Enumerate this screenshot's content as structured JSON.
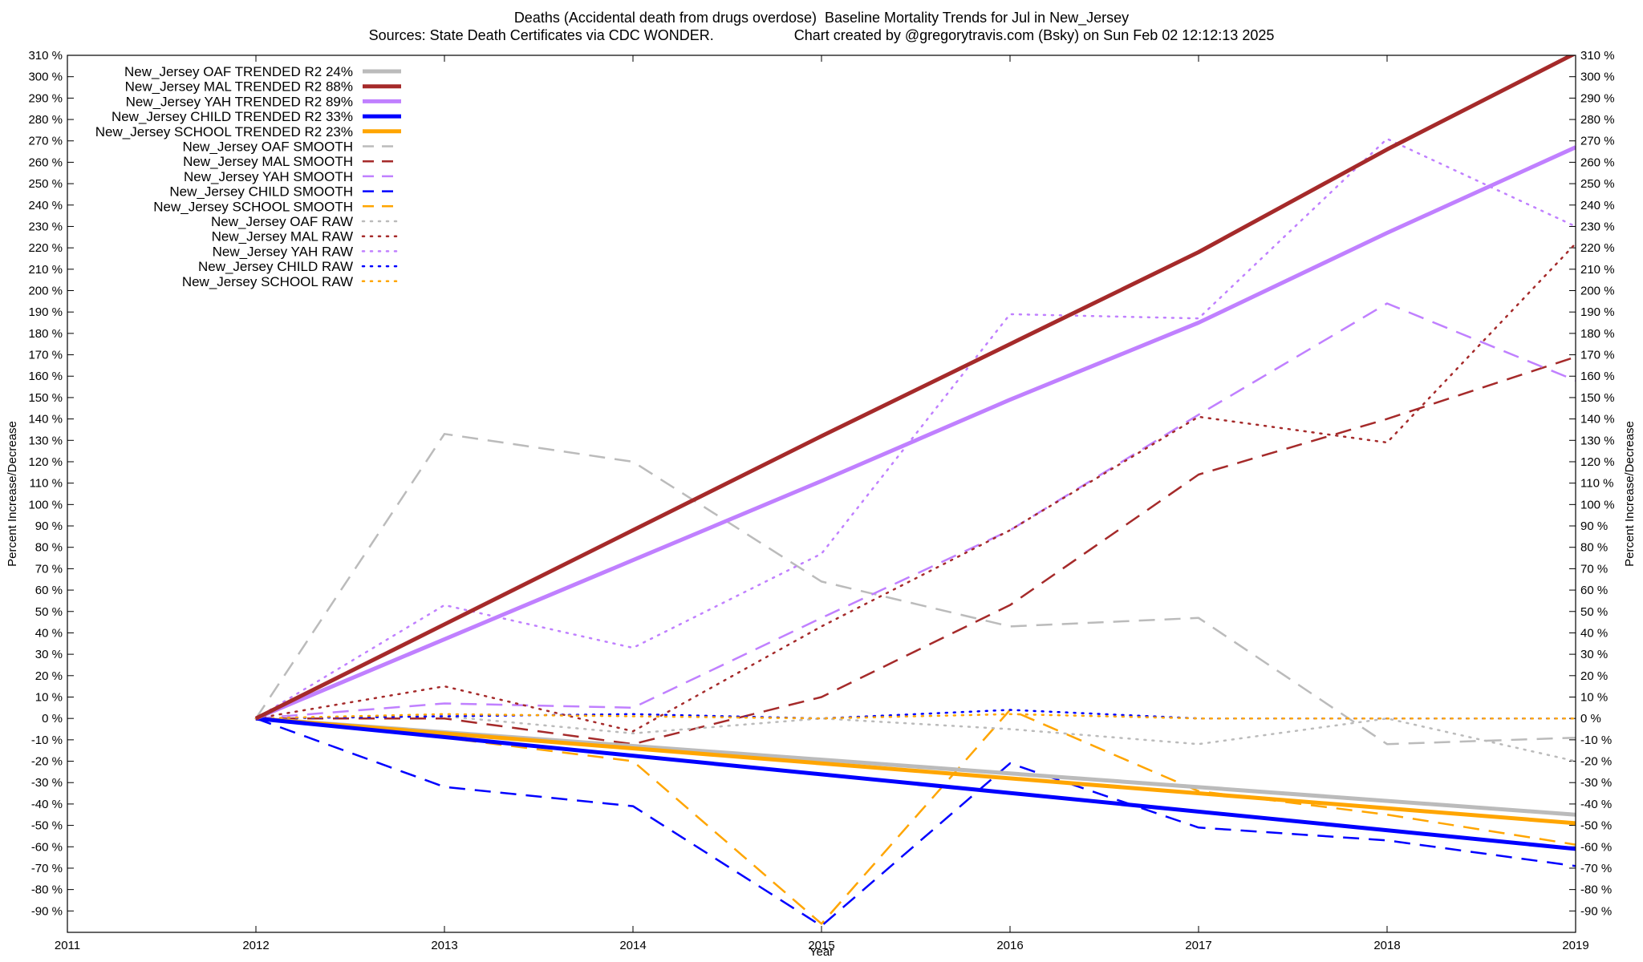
{
  "chart_data": {
    "type": "line",
    "title": "Deaths (Accidental death from drugs overdose)  Baseline Mortality Trends for Jul in New_Jersey",
    "subtitle_left": "Sources: State Death Certificates via CDC WONDER.",
    "subtitle_right": "Chart created by @gregorytravis.com (Bsky) on Sun Feb 02 12:12:13 2025",
    "xlabel": "Year",
    "ylabel": "Percent Increase/Decrease",
    "y2label": "Percent Increase/Decrease",
    "xlim": [
      2011,
      2019
    ],
    "ylim": [
      -100,
      310
    ],
    "x_ticks": [
      "2011",
      "2012",
      "2013",
      "2014",
      "2015",
      "2016",
      "2017",
      "2018",
      "2019"
    ],
    "y_ticks_left": [
      "310 %",
      "300 %",
      "290 %",
      "280 %",
      "270 %",
      "260 %",
      "250 %",
      "240 %",
      "230 %",
      "220 %",
      "210 %",
      "200 %",
      "190 %",
      "180 %",
      "170 %",
      "160 %",
      "150 %",
      "140 %",
      "130 %",
      "120 %",
      "110 %",
      "100 %",
      "90 %",
      "80 %",
      "70 %",
      "60 %",
      "50 %",
      "40 %",
      "30 %",
      "20 %",
      "10 %",
      "0 %",
      "-10 %",
      "-20 %",
      "-30 %",
      "-40 %",
      "-50 %",
      "-60 %",
      "-70 %",
      "-80 %",
      "-90 %"
    ],
    "y_ticks_right": [
      "310 %",
      "300 %",
      "290 %",
      "280 %",
      "270 %",
      "260 %",
      "250 %",
      "240 %",
      "230 %",
      "220 %",
      "210 %",
      "200 %",
      "190 %",
      "180 %",
      "170 %",
      "160 %",
      "150 %",
      "140 %",
      "130 %",
      "120 %",
      "110 %",
      "100 %",
      "90 %",
      "80 %",
      "70 %",
      "60 %",
      "50 %",
      "40 %",
      "30 %",
      "20 %",
      "10 %",
      "0 %",
      "-10 %",
      "-20 %",
      "-30 %",
      "-40 %",
      "-50 %",
      "-60 %",
      "-70 %",
      "-80 %",
      "-90 %"
    ],
    "legend_position": "top-left",
    "series": [
      {
        "name": "New_Jersey OAF TRENDED R2  24%",
        "color": "#bbbbbb",
        "style": "solid",
        "width": 5,
        "x": [
          2012,
          2019
        ],
        "y": [
          0,
          -45
        ]
      },
      {
        "name": "New_Jersey MAL TRENDED R2  88%",
        "color": "#a52a2a",
        "style": "solid",
        "width": 5,
        "x": [
          2012,
          2013,
          2014,
          2015,
          2016,
          2017,
          2018,
          2019
        ],
        "y": [
          0,
          44,
          88,
          132,
          175,
          218,
          266,
          311
        ]
      },
      {
        "name": "New_Jersey YAH TRENDED R2  89%",
        "color": "#c080ff",
        "style": "solid",
        "width": 5,
        "x": [
          2012,
          2013,
          2014,
          2015,
          2016,
          2017,
          2018,
          2019
        ],
        "y": [
          0,
          37,
          74,
          111,
          149,
          185,
          227,
          267
        ]
      },
      {
        "name": "New_Jersey CHILD TRENDED R2  33%",
        "color": "#0000ff",
        "style": "solid",
        "width": 5,
        "x": [
          2012,
          2019
        ],
        "y": [
          0,
          -61
        ]
      },
      {
        "name": "New_Jersey SCHOOL TRENDED R2  23%",
        "color": "#ffa500",
        "style": "solid",
        "width": 5,
        "x": [
          2012,
          2019
        ],
        "y": [
          0,
          -49
        ]
      },
      {
        "name": "New_Jersey OAF SMOOTH",
        "color": "#bbbbbb",
        "style": "dashed",
        "width": 2.5,
        "x": [
          2012,
          2013,
          2014,
          2015,
          2016,
          2017,
          2018,
          2019
        ],
        "y": [
          0,
          133,
          120,
          64,
          43,
          47,
          -12,
          -9
        ]
      },
      {
        "name": "New_Jersey MAL SMOOTH",
        "color": "#a52a2a",
        "style": "dashed",
        "width": 2.5,
        "x": [
          2012,
          2013,
          2014,
          2015,
          2016,
          2017,
          2018,
          2019
        ],
        "y": [
          0,
          0,
          -12,
          10,
          53,
          114,
          140,
          169
        ]
      },
      {
        "name": "New_Jersey YAH SMOOTH",
        "color": "#c080ff",
        "style": "dashed",
        "width": 2.5,
        "x": [
          2012,
          2013,
          2014,
          2015,
          2016,
          2017,
          2018,
          2019
        ],
        "y": [
          0,
          7,
          5,
          47,
          88,
          142,
          194,
          158
        ]
      },
      {
        "name": "New_Jersey CHILD SMOOTH",
        "color": "#0000ff",
        "style": "dashed",
        "width": 2.5,
        "x": [
          2012,
          2013,
          2014,
          2015,
          2016,
          2017,
          2018,
          2019
        ],
        "y": [
          0,
          -32,
          -41,
          -97,
          -21,
          -51,
          -57,
          -69
        ]
      },
      {
        "name": "New_Jersey SCHOOL SMOOTH",
        "color": "#ffa500",
        "style": "dashed",
        "width": 2.5,
        "x": [
          2012,
          2013,
          2014,
          2015,
          2016,
          2017,
          2018,
          2019
        ],
        "y": [
          0,
          -9,
          -20,
          -96,
          4,
          -34,
          -45,
          -59
        ]
      },
      {
        "name": "New_Jersey OAF RAW",
        "color": "#bbbbbb",
        "style": "dotted",
        "width": 2.5,
        "x": [
          2012,
          2013,
          2014,
          2015,
          2016,
          2017,
          2018,
          2019
        ],
        "y": [
          0,
          1,
          -7,
          0,
          -5,
          -12,
          0,
          -20
        ]
      },
      {
        "name": "New_Jersey MAL RAW",
        "color": "#a52a2a",
        "style": "dotted",
        "width": 2.5,
        "x": [
          2012,
          2013,
          2014,
          2015,
          2016,
          2017,
          2018,
          2019
        ],
        "y": [
          0,
          15,
          -6,
          43,
          88,
          141,
          129,
          222
        ]
      },
      {
        "name": "New_Jersey YAH RAW",
        "color": "#c080ff",
        "style": "dotted",
        "width": 2.5,
        "x": [
          2012,
          2013,
          2014,
          2015,
          2016,
          2017,
          2018,
          2019
        ],
        "y": [
          0,
          53,
          33,
          77,
          189,
          187,
          271,
          230
        ]
      },
      {
        "name": "New_Jersey CHILD RAW",
        "color": "#0000ff",
        "style": "dotted",
        "width": 2.5,
        "x": [
          2012,
          2013,
          2014,
          2015,
          2016,
          2017,
          2018,
          2019
        ],
        "y": [
          0,
          1,
          2,
          0,
          4,
          0,
          0,
          0
        ]
      },
      {
        "name": "New_Jersey SCHOOL RAW",
        "color": "#ffa500",
        "style": "dotted",
        "width": 2.5,
        "x": [
          2012,
          2013,
          2014,
          2015,
          2016,
          2017,
          2018,
          2019
        ],
        "y": [
          0,
          2,
          1,
          0,
          2,
          0,
          0,
          0
        ]
      }
    ]
  }
}
